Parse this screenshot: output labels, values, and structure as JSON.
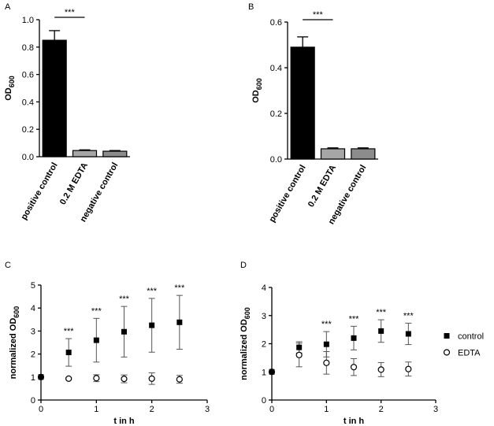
{
  "chart_data": [
    {
      "type": "bar",
      "panel_label": "A",
      "y_label": "OD",
      "y_label_sub": "600",
      "categories": [
        "positive control",
        "0.2 M EDTA",
        "negative control"
      ],
      "values": [
        0.85,
        0.045,
        0.04
      ],
      "errors": [
        0.07,
        0.005,
        0.005
      ],
      "colors": [
        "#000000",
        "#a6a6a6",
        "#8c8c8c"
      ],
      "ylim": [
        0,
        1.0
      ],
      "yticks": [
        {
          "value": 0,
          "label": "0.0"
        },
        0.2,
        0.4,
        0.6,
        0.8,
        {
          "value": 1,
          "label": "1.0"
        }
      ],
      "annotations": [
        {
          "label": "***",
          "between": [
            0,
            1
          ]
        }
      ]
    },
    {
      "type": "bar",
      "panel_label": "B",
      "y_label": "OD",
      "y_label_sub": "600",
      "categories": [
        "positive control",
        "0.2 M EDTA",
        "negative control"
      ],
      "values": [
        0.49,
        0.045,
        0.045
      ],
      "errors": [
        0.045,
        0.004,
        0.004
      ],
      "colors": [
        "#000000",
        "#a6a6a6",
        "#8c8c8c"
      ],
      "ylim": [
        0,
        0.6
      ],
      "yticks": [
        {
          "value": 0,
          "label": "0.0"
        },
        0.2,
        0.4,
        0.6
      ],
      "annotations": [
        {
          "label": "***",
          "between": [
            0,
            1
          ]
        }
      ]
    },
    {
      "type": "scatter",
      "panel_label": "C",
      "y_label": "normalized OD",
      "y_label_sub": "600",
      "x_label": "t in h",
      "x": [
        0,
        0.5,
        1,
        1.5,
        2,
        2.5
      ],
      "series": [
        {
          "name": "control",
          "color": "#000000",
          "marker": "square",
          "values": [
            1,
            2.07,
            2.6,
            2.97,
            3.25,
            3.38
          ],
          "errors": [
            null,
            0.6,
            0.95,
            1.1,
            1.17,
            1.17
          ]
        },
        {
          "name": "EDTA",
          "color": "#000000",
          "marker": "open-circle",
          "values": [
            1,
            0.93,
            0.95,
            0.92,
            0.93,
            0.9
          ],
          "errors": [
            null,
            0.05,
            0.15,
            0.17,
            0.25,
            0.17
          ]
        }
      ],
      "xlim": [
        0,
        3
      ],
      "xticks": [
        0,
        1,
        2,
        3
      ],
      "ylim": [
        0,
        5
      ],
      "yticks": [
        0,
        1,
        2,
        3,
        4,
        5
      ],
      "annotations": [
        {
          "x": 0.5,
          "label": "***"
        },
        {
          "x": 1,
          "label": "***"
        },
        {
          "x": 1.5,
          "label": "***"
        },
        {
          "x": 2,
          "label": "***"
        },
        {
          "x": 2.5,
          "label": "***"
        }
      ]
    },
    {
      "type": "scatter",
      "panel_label": "D",
      "y_label": "normalized OD",
      "y_label_sub": "600",
      "x_label": "t in h",
      "x": [
        0,
        0.5,
        1,
        1.5,
        2,
        2.5
      ],
      "series": [
        {
          "name": "control",
          "color": "#000000",
          "marker": "square",
          "values": [
            1,
            1.87,
            1.98,
            2.2,
            2.45,
            2.35
          ],
          "errors": [
            null,
            0.2,
            0.45,
            0.42,
            0.4,
            0.38
          ]
        },
        {
          "name": "EDTA",
          "color": "#000000",
          "marker": "open-circle",
          "values": [
            1,
            1.6,
            1.32,
            1.17,
            1.08,
            1.1
          ],
          "errors": [
            null,
            0.42,
            0.4,
            0.3,
            0.25,
            0.25
          ]
        }
      ],
      "xlim": [
        0,
        3
      ],
      "xticks": [
        0,
        1,
        2,
        3
      ],
      "ylim": [
        0,
        4
      ],
      "yticks": [
        0,
        1,
        2,
        3,
        4
      ],
      "legend": "right",
      "annotations": [
        {
          "x": 1,
          "label": "***"
        },
        {
          "x": 1.5,
          "label": "***"
        },
        {
          "x": 2,
          "label": "***"
        },
        {
          "x": 2.5,
          "label": "***"
        }
      ]
    }
  ]
}
